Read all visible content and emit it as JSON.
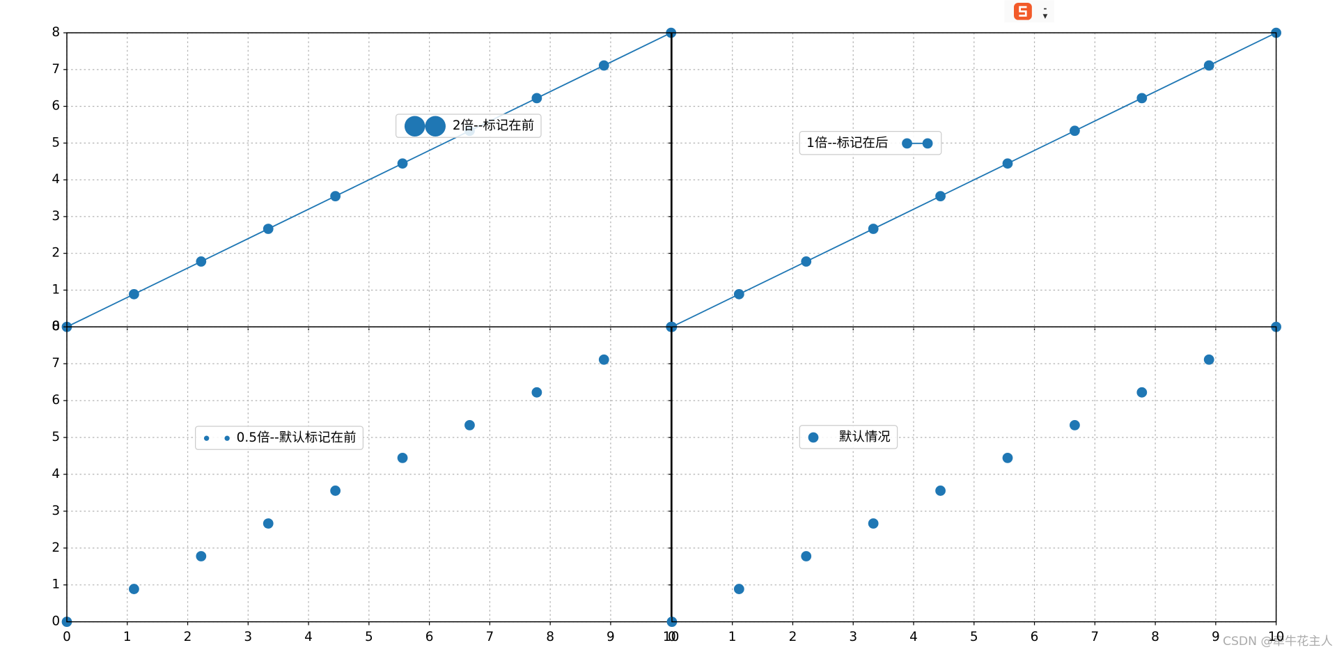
{
  "chart_data": [
    {
      "type": "line",
      "x": [
        0,
        1.1111,
        2.2222,
        3.3333,
        4.4444,
        5.5556,
        6.6667,
        7.7778,
        8.8889,
        10
      ],
      "series": [
        {
          "name": "2倍--标记在前",
          "color": "#1f77b4",
          "values": [
            0,
            0.8889,
            1.7778,
            2.6667,
            3.5556,
            4.4444,
            5.3333,
            6.2222,
            7.1111,
            8
          ]
        }
      ],
      "xlim": [
        0,
        10
      ],
      "ylim": [
        0,
        8
      ],
      "xticks": [
        0,
        1,
        2,
        3,
        4,
        5,
        6,
        7,
        8,
        9,
        10
      ],
      "yticks": [
        0,
        1,
        2,
        3,
        4,
        5,
        6,
        7,
        8
      ],
      "grid": true,
      "xtick_labels": false,
      "ytick_labels": true,
      "legend_marker_scale": 2,
      "legend_numpoints": 2,
      "legend_marker_first": true
    },
    {
      "type": "line",
      "x": [
        0,
        1.1111,
        2.2222,
        3.3333,
        4.4444,
        5.5556,
        6.6667,
        7.7778,
        8.8889,
        10
      ],
      "series": [
        {
          "name": "1倍--标记在后",
          "color": "#1f77b4",
          "values": [
            0,
            0.8889,
            1.7778,
            2.6667,
            3.5556,
            4.4444,
            5.3333,
            6.2222,
            7.1111,
            8
          ]
        }
      ],
      "xlim": [
        0,
        10
      ],
      "ylim": [
        0,
        8
      ],
      "xticks": [
        0,
        1,
        2,
        3,
        4,
        5,
        6,
        7,
        8,
        9,
        10
      ],
      "yticks": [
        0,
        1,
        2,
        3,
        4,
        5,
        6,
        7,
        8
      ],
      "grid": true,
      "xtick_labels": false,
      "ytick_labels": false,
      "legend_marker_scale": 1,
      "legend_numpoints": 2,
      "legend_marker_first": false
    },
    {
      "type": "scatter",
      "x": [
        0,
        1.1111,
        2.2222,
        3.3333,
        4.4444,
        5.5556,
        6.6667,
        7.7778,
        8.8889,
        10
      ],
      "series": [
        {
          "name": "0.5倍--默认标记在前",
          "color": "#1f77b4",
          "values": [
            0,
            0.8889,
            1.7778,
            2.6667,
            3.5556,
            4.4444,
            5.3333,
            6.2222,
            7.1111,
            8
          ]
        }
      ],
      "xlim": [
        0,
        10
      ],
      "ylim": [
        0,
        8
      ],
      "xticks": [
        0,
        1,
        2,
        3,
        4,
        5,
        6,
        7,
        8,
        9,
        10
      ],
      "yticks": [
        0,
        1,
        2,
        3,
        4,
        5,
        6,
        7,
        8
      ],
      "grid": true,
      "xtick_labels": true,
      "ytick_labels": true,
      "legend_marker_scale": 0.5,
      "legend_numpoints": 2,
      "legend_marker_first": true
    },
    {
      "type": "scatter",
      "x": [
        0,
        1.1111,
        2.2222,
        3.3333,
        4.4444,
        5.5556,
        6.6667,
        7.7778,
        8.8889,
        10
      ],
      "series": [
        {
          "name": "默认情况",
          "color": "#1f77b4",
          "values": [
            0,
            0.8889,
            1.7778,
            2.6667,
            3.5556,
            4.4444,
            5.3333,
            6.2222,
            7.1111,
            8
          ]
        }
      ],
      "xlim": [
        0,
        10
      ],
      "ylim": [
        0,
        8
      ],
      "xticks": [
        0,
        1,
        2,
        3,
        4,
        5,
        6,
        7,
        8,
        9,
        10
      ],
      "yticks": [
        0,
        1,
        2,
        3,
        4,
        5,
        6,
        7,
        8
      ],
      "grid": true,
      "xtick_labels": true,
      "ytick_labels": false,
      "legend_marker_scale": 1,
      "legend_numpoints": 1,
      "legend_marker_first": true
    }
  ],
  "watermark": "CSDN @牵牛花主人"
}
